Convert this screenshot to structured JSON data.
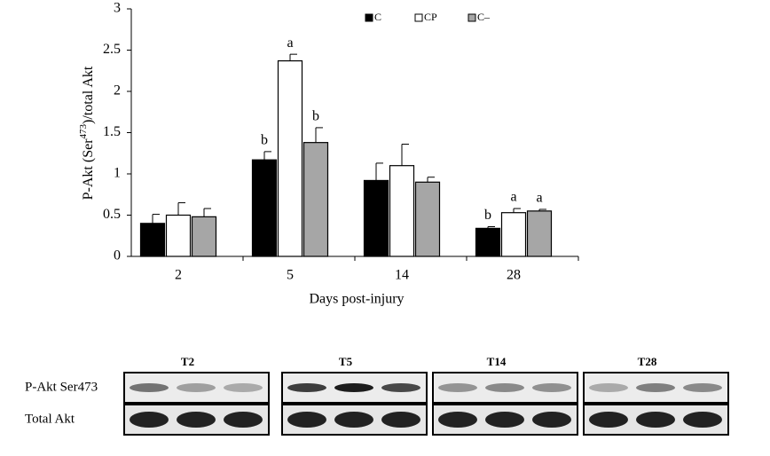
{
  "chart_data": {
    "type": "bar",
    "y_label": {
      "prefix": "P-Akt (Ser",
      "superscript": "473",
      "suffix": ")/total Akt"
    },
    "x_label": "Days post-injury",
    "categories": [
      "2",
      "5",
      "14",
      "28"
    ],
    "series": [
      {
        "name": "C",
        "color": "#000000",
        "values": [
          0.4,
          1.17,
          0.92,
          0.34
        ],
        "errors": [
          0.11,
          0.1,
          0.21,
          0.02
        ],
        "letters": [
          null,
          "b",
          null,
          "b"
        ]
      },
      {
        "name": "CP",
        "color": "#ffffff",
        "values": [
          0.5,
          2.37,
          1.1,
          0.53
        ],
        "errors": [
          0.15,
          0.08,
          0.26,
          0.05
        ],
        "letters": [
          null,
          "a",
          null,
          "a"
        ]
      },
      {
        "name": "C–",
        "color": "#a6a6a6",
        "values": [
          0.48,
          1.38,
          0.9,
          0.55
        ],
        "errors": [
          0.1,
          0.18,
          0.06,
          0.02
        ],
        "letters": [
          null,
          "b",
          null,
          "a"
        ]
      }
    ],
    "ylim": [
      0,
      3
    ],
    "yticks": [
      0,
      0.5,
      1,
      1.5,
      2,
      2.5,
      3
    ]
  },
  "blot": {
    "row_labels": [
      "P-Akt Ser473",
      "Total Akt"
    ],
    "panels": [
      "T2",
      "T5",
      "T14",
      "T28"
    ]
  }
}
